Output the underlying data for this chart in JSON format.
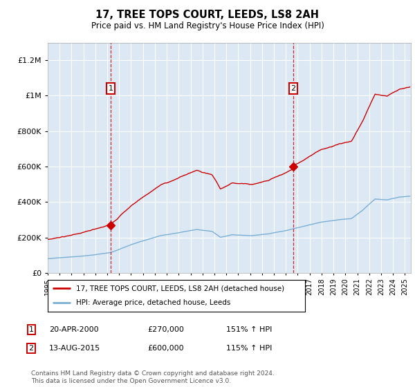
{
  "title": "17, TREE TOPS COURT, LEEDS, LS8 2AH",
  "subtitle": "Price paid vs. HM Land Registry's House Price Index (HPI)",
  "ylim": [
    0,
    1300000
  ],
  "yticks": [
    0,
    200000,
    400000,
    600000,
    800000,
    1000000,
    1200000
  ],
  "background_color": "#ffffff",
  "plot_bg_color": "#dce9f5",
  "grid_color": "#ffffff",
  "sale_color": "#cc0000",
  "hpi_color": "#7aafd4",
  "vline_color": "#cc0000",
  "marker1_year": 2000.29,
  "marker2_year": 2015.62,
  "marker1_price": 270000,
  "marker2_price": 600000,
  "legend_sale_label": "17, TREE TOPS COURT, LEEDS, LS8 2AH (detached house)",
  "legend_hpi_label": "HPI: Average price, detached house, Leeds",
  "xmin": 1995.0,
  "xmax": 2025.5,
  "seed": 12345
}
